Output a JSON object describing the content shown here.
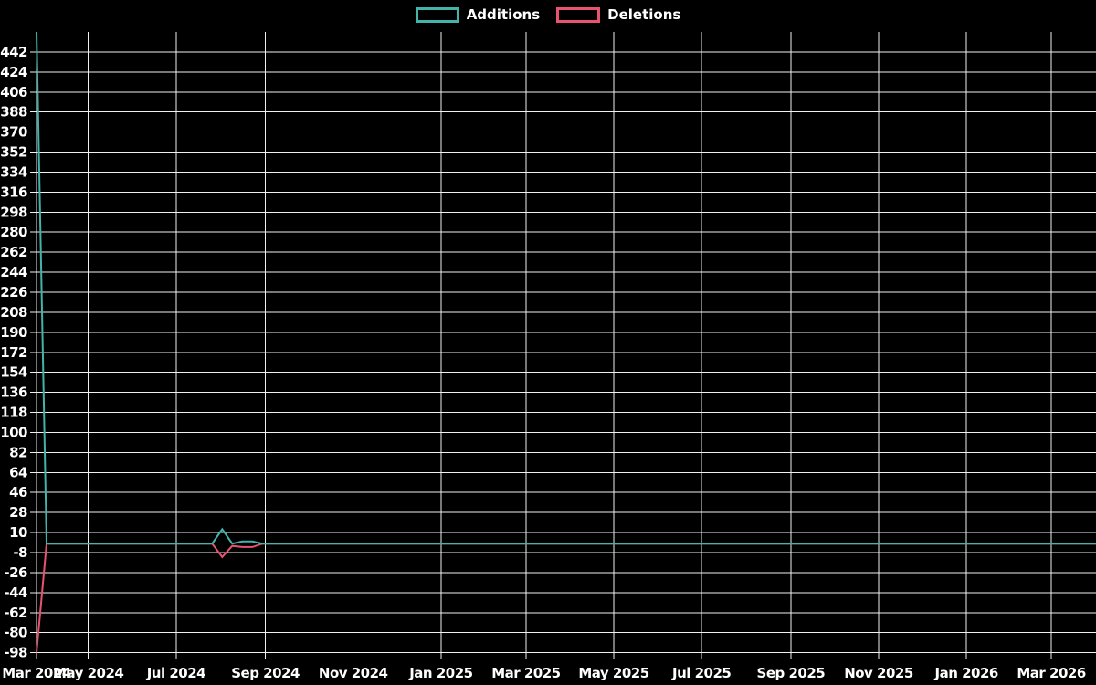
{
  "colors": {
    "background": "#000000",
    "grid": "#f0f0f0",
    "text": "#ffffff",
    "additions": "#44b3aa",
    "deletions": "#e8546f"
  },
  "legend": {
    "items": [
      {
        "label": "Additions",
        "color": "#44b3aa"
      },
      {
        "label": "Deletions",
        "color": "#e8546f"
      }
    ]
  },
  "chart_data": {
    "type": "line",
    "grid": true,
    "legend_position": "top-center",
    "x_axis": {
      "type": "time",
      "start": "2024-03-26",
      "end": "2026-04-01",
      "ticks": [
        {
          "date": "2024-03-26",
          "label": "Mar 2024"
        },
        {
          "date": "2024-05-01",
          "label": "May 2024"
        },
        {
          "date": "2024-07-01",
          "label": "Jul 2024"
        },
        {
          "date": "2024-09-01",
          "label": "Sep 2024"
        },
        {
          "date": "2024-11-01",
          "label": "Nov 2024"
        },
        {
          "date": "2025-01-01",
          "label": "Jan 2025"
        },
        {
          "date": "2025-03-01",
          "label": "Mar 2025"
        },
        {
          "date": "2025-05-01",
          "label": "May 2025"
        },
        {
          "date": "2025-07-01",
          "label": "Jul 2025"
        },
        {
          "date": "2025-09-01",
          "label": "Sep 2025"
        },
        {
          "date": "2025-11-01",
          "label": "Nov 2025"
        },
        {
          "date": "2026-01-01",
          "label": "Jan 2026"
        },
        {
          "date": "2026-03-01",
          "label": "Mar 2026"
        }
      ]
    },
    "y_axis": {
      "min": -98,
      "max": 460,
      "tick_step": 18,
      "tick_labels": [
        "442",
        "424",
        "406",
        "388",
        "370",
        "352",
        "334",
        "316",
        "298",
        "280",
        "262",
        "244",
        "226",
        "208",
        "190",
        "172",
        "154",
        "136",
        "118",
        "100",
        "82",
        "64",
        "46",
        "28",
        "10",
        "-8",
        "-26",
        "-44",
        "-62",
        "-80",
        "-98"
      ]
    },
    "series": [
      {
        "name": "Additions",
        "color": "#44b3aa",
        "points": [
          [
            "2024-03-26",
            460
          ],
          [
            "2024-04-02",
            0
          ],
          [
            "2024-07-26",
            0
          ],
          [
            "2024-08-02",
            13
          ],
          [
            "2024-08-09",
            0
          ],
          [
            "2024-08-16",
            2
          ],
          [
            "2024-08-23",
            2
          ],
          [
            "2024-08-30",
            0
          ],
          [
            "2026-04-01",
            0
          ]
        ]
      },
      {
        "name": "Deletions",
        "color": "#e8546f",
        "points": [
          [
            "2024-03-26",
            -98
          ],
          [
            "2024-04-02",
            0
          ],
          [
            "2024-07-26",
            0
          ],
          [
            "2024-08-02",
            -12
          ],
          [
            "2024-08-09",
            -2
          ],
          [
            "2024-08-16",
            -3
          ],
          [
            "2024-08-23",
            -3
          ],
          [
            "2024-08-30",
            0
          ],
          [
            "2026-04-01",
            0
          ]
        ]
      }
    ]
  }
}
